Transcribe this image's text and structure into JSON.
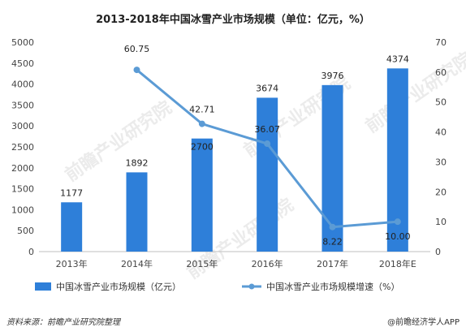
{
  "chart_data": {
    "type": "bar",
    "title": "2013-2018年中国冰雪产业市场规模（单位：亿元，%）",
    "categories": [
      "2013年",
      "2014年",
      "2015年",
      "2016年",
      "2017年",
      "2018年E"
    ],
    "series": [
      {
        "name": "中国冰雪产业市场规模（亿元）",
        "type": "bar",
        "axis": "left",
        "values": [
          1177,
          1892,
          2700,
          3674,
          3976,
          4374
        ],
        "labels": [
          "1177",
          "1892",
          "2700",
          "3674",
          "3976",
          "4374"
        ]
      },
      {
        "name": "中国冰雪产业市场规模增速（%）",
        "type": "line",
        "axis": "right",
        "values": [
          null,
          60.75,
          42.71,
          36.07,
          8.22,
          10.0
        ],
        "labels": [
          "",
          "60.75",
          "42.71",
          "36.07",
          "8.22",
          "10.00"
        ]
      }
    ],
    "y_left": {
      "min": 0,
      "max": 5000,
      "step": 500,
      "ticks": [
        "0",
        "500",
        "1000",
        "1500",
        "2000",
        "2500",
        "3000",
        "3500",
        "4000",
        "4500",
        "5000"
      ]
    },
    "y_right": {
      "min": 0,
      "max": 70,
      "step": 10,
      "ticks": [
        "0",
        "10",
        "20",
        "30",
        "40",
        "50",
        "60",
        "70"
      ]
    },
    "grid": false,
    "legend_position": "bottom",
    "colors": {
      "bar": "#2e7fd9",
      "line": "#5b9bd5",
      "axis": "#bfbfbf"
    }
  },
  "footer": {
    "source_label": "资料来源：",
    "source_text": "前瞻产业研究院整理",
    "brand": "@前瞻经济学人APP"
  },
  "watermark": {
    "text": "前瞻产业研究院"
  }
}
